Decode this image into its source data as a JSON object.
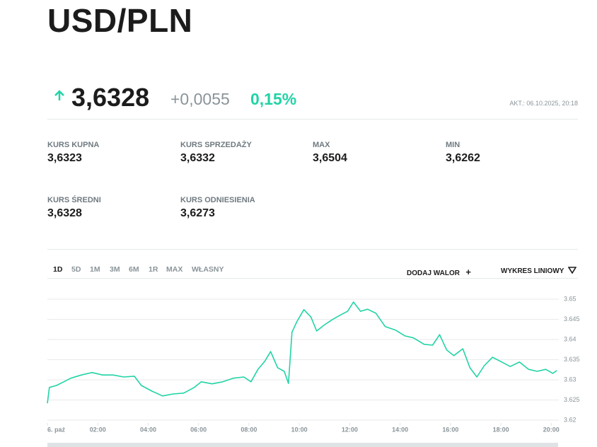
{
  "header": {
    "title": "USD/PLN",
    "price": "3,6328",
    "change": "+0,0055",
    "change_pct": "0,15%",
    "updated": "AKT.: 06.10.2025, 20:18"
  },
  "stats": [
    {
      "label": "KURS KUPNA",
      "value": "3,6323"
    },
    {
      "label": "KURS SPRZEDAŻY",
      "value": "3,6332"
    },
    {
      "label": "MAX",
      "value": "3,6504"
    },
    {
      "label": "MIN",
      "value": "3,6262"
    },
    {
      "label": "KURS ŚREDNI",
      "value": "3,6328"
    },
    {
      "label": "KURS ODNIESIENIA",
      "value": "3,6273"
    }
  ],
  "tabs": [
    "1D",
    "5D",
    "1M",
    "3M",
    "6M",
    "1R",
    "MAX",
    "WŁASNY"
  ],
  "active_tab": "1D",
  "actions": [
    "DODAJ WALOR",
    "WYKRES LINIOWY"
  ],
  "chart_data": {
    "type": "line",
    "color": "#22d3a6",
    "grid": true,
    "x": [
      0,
      0.08,
      0.36,
      0.65,
      0.93,
      1.35,
      1.77,
      2.19,
      2.61,
      3.03,
      3.45,
      3.73,
      4.15,
      4.57,
      4.99,
      5.41,
      5.83,
      6.11,
      6.54,
      6.96,
      7.38,
      7.8,
      8.08,
      8.36,
      8.64,
      8.86,
      9.14,
      9.4,
      9.57,
      9.71,
      9.9,
      10.18,
      10.46,
      10.69,
      10.97,
      11.3,
      11.64,
      11.92,
      12.15,
      12.43,
      12.71,
      13.04,
      13.41,
      13.83,
      14.19,
      14.53,
      14.95,
      15.29,
      15.57,
      15.85,
      16.13,
      16.49,
      16.77,
      17.05,
      17.34,
      17.67,
      18.04,
      18.37,
      18.74,
      19.1,
      19.44,
      19.78,
      20.06,
      20.22
    ],
    "values": [
      3.6242,
      3.6281,
      3.6286,
      3.6295,
      3.6304,
      3.6312,
      3.6318,
      3.6312,
      3.6312,
      3.6307,
      3.6309,
      3.6286,
      3.6272,
      3.626,
      3.6265,
      3.6267,
      3.6281,
      3.6295,
      3.629,
      3.6295,
      3.6304,
      3.6307,
      3.6295,
      3.6326,
      3.6347,
      3.637,
      3.633,
      3.6321,
      3.6291,
      3.6418,
      3.6444,
      3.6474,
      3.6456,
      3.6421,
      3.6435,
      3.6449,
      3.6461,
      3.647,
      3.6493,
      3.647,
      3.6475,
      3.6465,
      3.6432,
      3.6423,
      3.6409,
      3.6404,
      3.6388,
      3.6386,
      3.6412,
      3.6374,
      3.636,
      3.6377,
      3.633,
      3.6307,
      3.6335,
      3.6356,
      3.6344,
      3.6333,
      3.6344,
      3.6326,
      3.6321,
      3.6326,
      3.6316,
      3.6323
    ],
    "xlim": [
      0,
      20.3
    ],
    "xticks": [
      {
        "value": 0,
        "label": "6. paź"
      },
      {
        "value": 2,
        "label": "02:00"
      },
      {
        "value": 4,
        "label": "04:00"
      },
      {
        "value": 6,
        "label": "06:00"
      },
      {
        "value": 8,
        "label": "08:00"
      },
      {
        "value": 10,
        "label": "10:00"
      },
      {
        "value": 12,
        "label": "12:00"
      },
      {
        "value": 14,
        "label": "14:00"
      },
      {
        "value": 16,
        "label": "16:00"
      },
      {
        "value": 18,
        "label": "18:00"
      },
      {
        "value": 20,
        "label": "20:00"
      }
    ],
    "ylim": [
      3.62,
      3.65
    ],
    "yticks": [
      3.62,
      3.625,
      3.63,
      3.635,
      3.64,
      3.645,
      3.65
    ]
  }
}
